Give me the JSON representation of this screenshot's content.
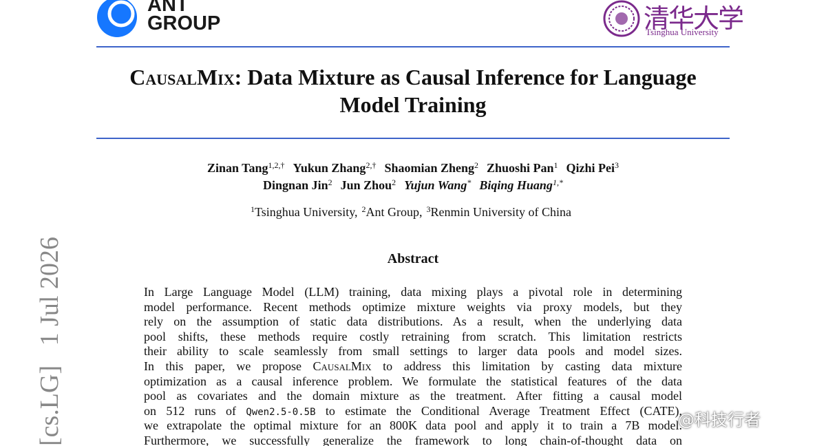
{
  "header": {
    "left_logo": [
      "ANT",
      "GROUP"
    ],
    "right_logo": {
      "chinese": "清华大学",
      "english": "Tsinghua University"
    }
  },
  "title": {
    "lines": [
      [
        "CausalMix",
        ": Data Mixture as Causal Inference for Language"
      ],
      [
        "Model Training"
      ]
    ]
  },
  "authors": [
    {
      "name": "Zinan Tang",
      "sup": "1,2,†"
    },
    {
      "name": "Yukun Zhang",
      "sup": "2,†"
    },
    {
      "name": "Shaomian Zheng",
      "sup": "2"
    },
    {
      "name": "Zhuoshi Pan",
      "sup": "1"
    },
    {
      "name": "Qizhi Pei",
      "sup": "3"
    },
    {
      "name": "Dingnan Jin",
      "sup": "2"
    },
    {
      "name": "Jun Zhou",
      "sup": "2"
    },
    {
      "name": "Yujun Wang",
      "sup": "*"
    },
    {
      "name": "Biqing Huang",
      "sup": "1,*"
    }
  ],
  "affiliations": [
    {
      "sup": "1",
      "name": "Tsinghua University,"
    },
    {
      "sup": "2",
      "name": "Ant Group,"
    },
    {
      "sup": "3",
      "name": "Renmin University of China"
    }
  ],
  "abstract": {
    "heading": "Abstract",
    "lines": [
      [
        "In Large Language Model (LLM) training, data mixing plays a pivotal role in determining"
      ],
      [
        "model performance. Recent methods optimize mixture weights via proxy models, but they"
      ],
      [
        "rely on the assumption of static data distributions. As a result, when the underlying data"
      ],
      [
        "pool shifts, these methods require costly retraining from scratch. This limitation restricts"
      ],
      [
        "their ability to scale seamlessly from small settings to larger data pools and model sizes."
      ],
      [
        "In this paper, we propose ",
        "CausalMix",
        " to address this limitation by casting data mixture"
      ],
      [
        "optimization as a causal inference problem. We formulate the statistical features of the data"
      ],
      [
        "pool as covariates and the domain mixture as the treatment. After fitting a causal model"
      ],
      [
        "on 512 runs of ",
        "Qwen2.5-0.5B",
        " to estimate the Conditional Average Treatment Effect (CATE),"
      ],
      [
        "we extrapolate the optimal mixture for an 800K data pool and apply it to train a 7B model."
      ],
      [
        "Furthermore, we successfully generalize the framework to long chain-of-thought data on"
      ]
    ]
  },
  "sidebar": "[cs.LG]   1 Jul 2026",
  "watermark": "@科技行者"
}
